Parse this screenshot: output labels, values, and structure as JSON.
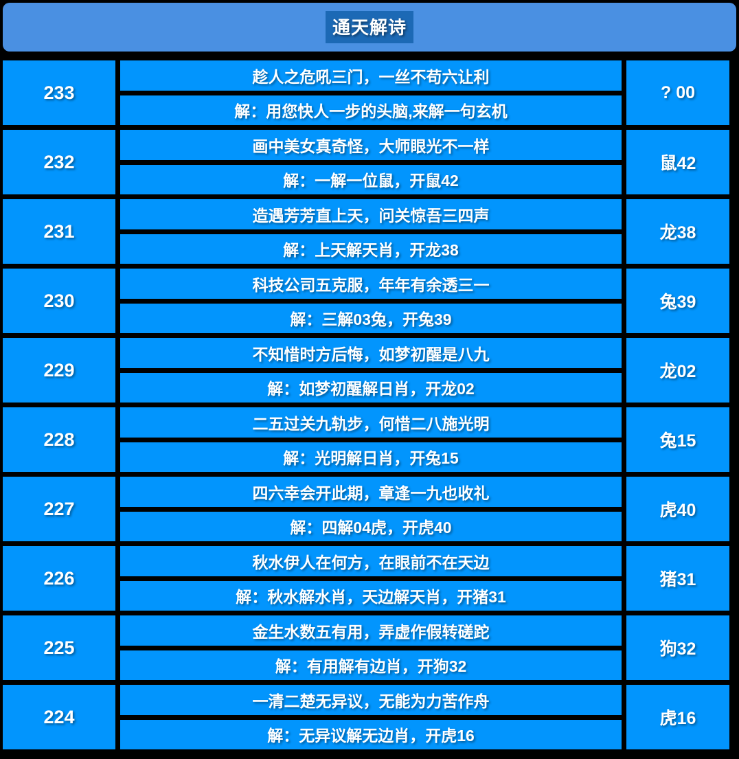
{
  "title": "通天解诗",
  "colors": {
    "background": "#000000",
    "header_bar": "#4a90e2",
    "title_box": "#1c69b5",
    "cell": "#0295fd",
    "text": "#ffffff"
  },
  "table": {
    "rows": [
      {
        "period": "233",
        "poem": "趁人之危吼三门，一丝不苟六让利",
        "jie": "解：用您快人一步的头脑,来解一句玄机",
        "result": "? 00"
      },
      {
        "period": "232",
        "poem": "画中美女真奇怪，大师眼光不一样",
        "jie": "解：一解一位鼠，开鼠42",
        "result": "鼠42"
      },
      {
        "period": "231",
        "poem": "造遇芳芳直上天，问关惊吾三四声",
        "jie": "解：上天解天肖，开龙38",
        "result": "龙38"
      },
      {
        "period": "230",
        "poem": "科技公司五克服，年年有余透三一",
        "jie": "解：三解03兔，开兔39",
        "result": "兔39"
      },
      {
        "period": "229",
        "poem": "不知惜时方后悔，如梦初醒是八九",
        "jie": "解：如梦初醒解日肖，开龙02",
        "result": "龙02"
      },
      {
        "period": "228",
        "poem": "二五过关九轨步，何惜二八施光明",
        "jie": "解：光明解日肖，开兔15",
        "result": "兔15"
      },
      {
        "period": "227",
        "poem": "四六幸会开此期，章逢一九也收礼",
        "jie": "解：四解04虎，开虎40",
        "result": "虎40"
      },
      {
        "period": "226",
        "poem": "秋水伊人在何方，在眼前不在天边",
        "jie": "解：秋水解水肖，天边解天肖，开猪31",
        "result": "猪31"
      },
      {
        "period": "225",
        "poem": "金生水数五有用，弄虚作假转磋跎",
        "jie": "解：有用解有边肖，开狗32",
        "result": "狗32"
      },
      {
        "period": "224",
        "poem": "一清二楚无异议，无能为力苦作舟",
        "jie": "解：无异议解无边肖，开虎16",
        "result": "虎16"
      }
    ]
  }
}
